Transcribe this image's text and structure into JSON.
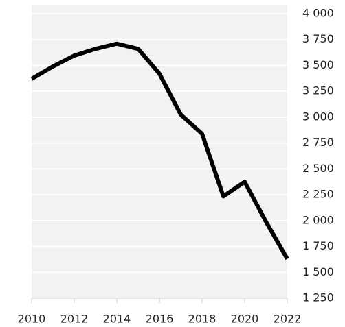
{
  "chart_data": {
    "type": "line",
    "x": [
      2010,
      2011,
      2012,
      2013,
      2014,
      2015,
      2016,
      2017,
      2018,
      2019,
      2020,
      2021,
      2022
    ],
    "series": [
      {
        "color": "#000000",
        "values": [
          3370,
          3490,
          3595,
          3660,
          3710,
          3660,
          3420,
          3025,
          2840,
          2235,
          2375,
          1990,
          1630
        ]
      }
    ],
    "xlim": [
      2010,
      2022
    ],
    "xticks": [
      2010,
      2012,
      2014,
      2016,
      2018,
      2020,
      2022
    ],
    "ylim": [
      1250,
      4000
    ],
    "yticks": [
      {
        "value": 1250,
        "label": "1 250"
      },
      {
        "value": 1500,
        "label": "1 500"
      },
      {
        "value": 1750,
        "label": "1 750"
      },
      {
        "value": 2000,
        "label": "2 000"
      },
      {
        "value": 2250,
        "label": "2 250"
      },
      {
        "value": 2500,
        "label": "2 500"
      },
      {
        "value": 2750,
        "label": "2 750"
      },
      {
        "value": 3000,
        "label": "3 000"
      },
      {
        "value": 3250,
        "label": "3 250"
      },
      {
        "value": 3500,
        "label": "3 500"
      },
      {
        "value": 3750,
        "label": "3 750"
      },
      {
        "value": 4000,
        "label": "4 000"
      }
    ],
    "yaxis_side": "right",
    "grid": true
  }
}
